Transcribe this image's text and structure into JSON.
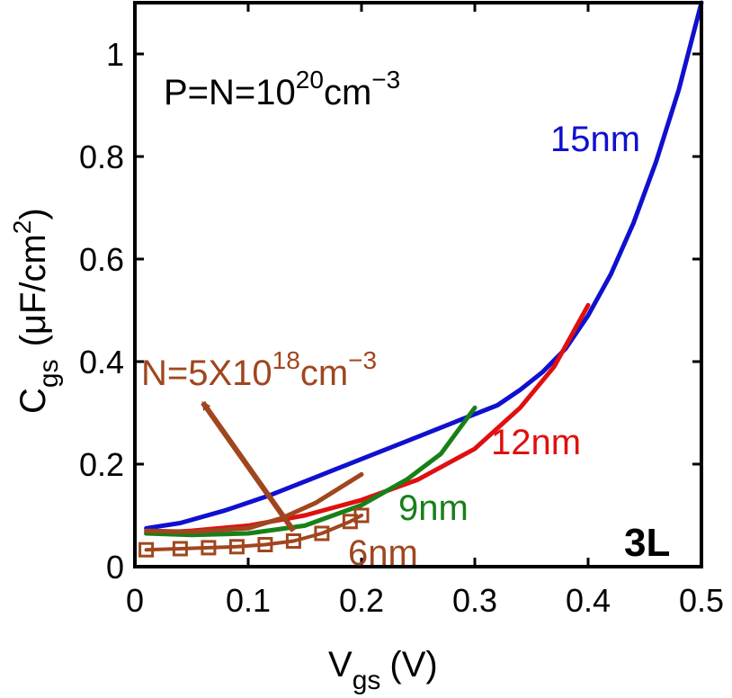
{
  "chart_data": {
    "type": "line",
    "title": "",
    "xlabel": {
      "main": "V",
      "sub": "gs",
      "unit": "(V)"
    },
    "ylabel": {
      "main": "C",
      "sub": "gs",
      "unit_prefix": "(μF/cm",
      "unit_sup": "2",
      "unit_suffix": ")"
    },
    "xlim": [
      0,
      0.5
    ],
    "ylim": [
      0,
      1.1
    ],
    "xticks": [
      0,
      0.1,
      0.2,
      0.3,
      0.4,
      0.5
    ],
    "xtick_labels": [
      "0",
      "0.1",
      "0.2",
      "0.3",
      "0.4",
      "0.5"
    ],
    "yticks": [
      0,
      0.2,
      0.4,
      0.6,
      0.8,
      1.0
    ],
    "ytick_labels": [
      "0",
      "0.2",
      "0.4",
      "0.6",
      "0.8",
      "1"
    ],
    "grid": false,
    "series": [
      {
        "name": "15nm",
        "color": "#1010d0",
        "x": [
          0.01,
          0.04,
          0.08,
          0.12,
          0.16,
          0.2,
          0.24,
          0.28,
          0.32,
          0.34,
          0.36,
          0.38,
          0.4,
          0.42,
          0.44,
          0.46,
          0.48,
          0.5
        ],
        "y": [
          0.075,
          0.085,
          0.11,
          0.14,
          0.175,
          0.21,
          0.245,
          0.28,
          0.315,
          0.345,
          0.38,
          0.425,
          0.49,
          0.57,
          0.67,
          0.79,
          0.93,
          1.1
        ]
      },
      {
        "name": "12nm",
        "color": "#e01010",
        "x": [
          0.01,
          0.05,
          0.1,
          0.15,
          0.2,
          0.25,
          0.3,
          0.34,
          0.37,
          0.4
        ],
        "y": [
          0.065,
          0.07,
          0.08,
          0.1,
          0.13,
          0.17,
          0.23,
          0.31,
          0.39,
          0.51
        ]
      },
      {
        "name": "9nm",
        "color": "#188018",
        "x": [
          0.01,
          0.05,
          0.1,
          0.15,
          0.2,
          0.24,
          0.27,
          0.3
        ],
        "y": [
          0.065,
          0.062,
          0.065,
          0.08,
          0.12,
          0.17,
          0.22,
          0.31
        ]
      },
      {
        "name": "6nm",
        "color": "#a0461e",
        "x": [
          0.01,
          0.05,
          0.1,
          0.13,
          0.16,
          0.2
        ],
        "y": [
          0.07,
          0.068,
          0.075,
          0.095,
          0.125,
          0.18
        ]
      },
      {
        "name": "N=5X10^18cm^-3",
        "color": "#a0461e",
        "marker": "square",
        "x": [
          0.01,
          0.04,
          0.065,
          0.09,
          0.115,
          0.14,
          0.165,
          0.19,
          0.2
        ],
        "y": [
          0.033,
          0.035,
          0.037,
          0.039,
          0.043,
          0.05,
          0.065,
          0.088,
          0.1
        ]
      }
    ],
    "annotations": {
      "doping": {
        "prefix": "P=N=10",
        "sup": "20",
        "mid": "cm",
        "sup2": "−3"
      },
      "low_doping": {
        "prefix": "N=5X10",
        "sup": "18",
        "mid": "cm",
        "sup2": "−3"
      },
      "label_15nm": "15nm",
      "label_12nm": "12nm",
      "label_9nm": "9nm",
      "label_6nm": "6nm",
      "layers": "3L"
    },
    "arrow": {
      "from": [
        0.14,
        0.07
      ],
      "to": [
        0.06,
        0.32
      ]
    }
  }
}
